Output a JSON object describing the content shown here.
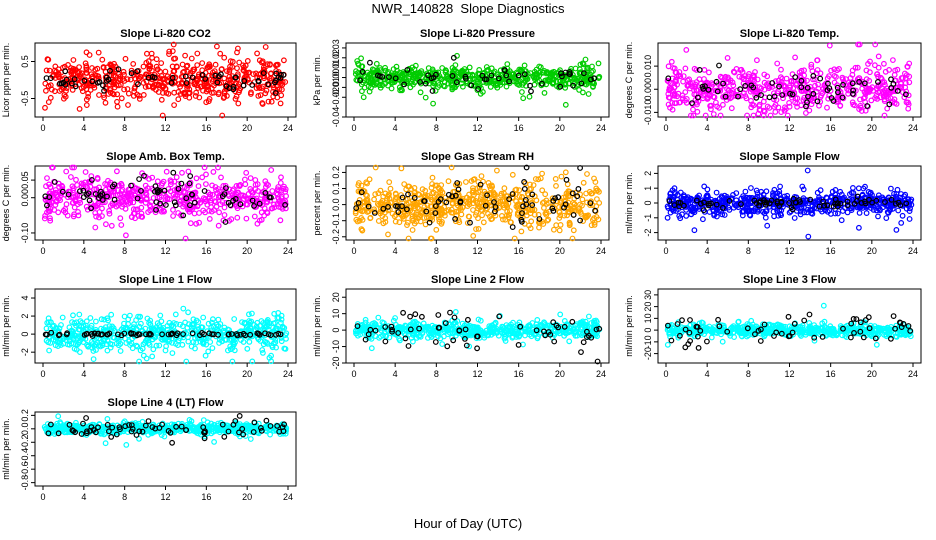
{
  "page": {
    "title": "NWR_140828  Slope Diagnostics",
    "xlabel": "Hour of Day (UTC)"
  },
  "chart_data": [
    {
      "type": "scatter",
      "title": "Slope Li-820 CO2",
      "ylabel": "Licor ppm per min.",
      "xlim": [
        0,
        24
      ],
      "ylim": [
        -1.0,
        1.0
      ],
      "yticks": [
        -0.5,
        0.5
      ],
      "yticklabels": [
        "-0.5",
        "0.5"
      ],
      "xticks": [
        0,
        4,
        8,
        12,
        16,
        20,
        24
      ],
      "series": [
        {
          "color": "#ff0000",
          "spread": 0.28,
          "n": 560
        },
        {
          "color": "#000000",
          "spread": 0.12,
          "n": 60
        }
      ]
    },
    {
      "type": "scatter",
      "title": "Slope Li-820 Pressure",
      "ylabel": "kPa per min.",
      "xlim": [
        0,
        24
      ],
      "ylim": [
        -0.04,
        0.035
      ],
      "yticks": [
        -0.04,
        -0.02,
        -0.01,
        0.0,
        0.01,
        0.02,
        0.03
      ],
      "yticklabels": [
        "-0.04",
        "-0.02",
        "-0.01",
        "0.00",
        "0.01",
        "0.02",
        "0.03"
      ],
      "xticks": [
        0,
        4,
        8,
        12,
        16,
        20,
        24
      ],
      "series": [
        {
          "color": "#00cc00",
          "spread": 0.006,
          "n": 560
        },
        {
          "color": "#000000",
          "spread": 0.006,
          "n": 50
        }
      ]
    },
    {
      "type": "scatter",
      "title": "Slope Li-820 Temp.",
      "ylabel": "degrees C per min.",
      "xlim": [
        0,
        24
      ],
      "ylim": [
        -0.012,
        0.02
      ],
      "yticks": [
        -0.01,
        0.0,
        0.01
      ],
      "yticklabels": [
        "-0.010",
        "0.000",
        "0.010"
      ],
      "xticks": [
        0,
        4,
        8,
        12,
        16,
        20,
        24
      ],
      "series": [
        {
          "color": "#ff00ff",
          "spread": 0.005,
          "n": 560
        },
        {
          "color": "#000000",
          "spread": 0.004,
          "n": 60
        }
      ]
    },
    {
      "type": "scatter",
      "title": "Slope Amb. Box Temp.",
      "ylabel": "degrees C per min.",
      "xlim": [
        0,
        24
      ],
      "ylim": [
        -0.12,
        0.09
      ],
      "yticks": [
        -0.1,
        0.0,
        0.05
      ],
      "yticklabels": [
        "-0.10",
        "0.00",
        "0.05"
      ],
      "xticks": [
        0,
        4,
        8,
        12,
        16,
        20,
        24
      ],
      "series": [
        {
          "color": "#ff00ff",
          "spread": 0.03,
          "n": 560
        },
        {
          "color": "#000000",
          "spread": 0.03,
          "n": 70
        }
      ]
    },
    {
      "type": "scatter",
      "title": "Slope Gas Stream RH",
      "ylabel": "percent per min.",
      "xlim": [
        0,
        24
      ],
      "ylim": [
        -0.22,
        0.24
      ],
      "yticks": [
        -0.2,
        -0.1,
        0.0,
        0.1,
        0.2
      ],
      "yticklabels": [
        "-0.2",
        "-0.1",
        "0.0",
        "0.1",
        "0.2"
      ],
      "xticks": [
        0,
        4,
        8,
        12,
        16,
        20,
        24
      ],
      "series": [
        {
          "color": "#ffa500",
          "spread": 0.07,
          "n": 620
        },
        {
          "color": "#000000",
          "spread": 0.06,
          "n": 70
        }
      ]
    },
    {
      "type": "scatter",
      "title": "Slope Sample Flow",
      "ylabel": "ml/min per min.",
      "xlim": [
        0,
        24
      ],
      "ylim": [
        -2.5,
        2.5
      ],
      "yticks": [
        -2,
        -1,
        0,
        1,
        2
      ],
      "yticklabels": [
        "-2",
        "-1",
        "0",
        "1",
        "2"
      ],
      "xticks": [
        0,
        4,
        8,
        12,
        16,
        20,
        24
      ],
      "series": [
        {
          "color": "#0000ff",
          "spread": 0.4,
          "n": 600
        },
        {
          "color": "#000000",
          "spread": 0.15,
          "n": 70
        }
      ]
    },
    {
      "type": "scatter",
      "title": "Slope Line 1 Flow",
      "ylabel": "ml/min per min.",
      "xlim": [
        0,
        24
      ],
      "ylim": [
        -3.2,
        5.0
      ],
      "yticks": [
        -2,
        0,
        2,
        4
      ],
      "yticklabels": [
        "-2",
        "0",
        "2",
        "4"
      ],
      "xticks": [
        0,
        4,
        8,
        12,
        16,
        20,
        24
      ],
      "series": [
        {
          "color": "#00ffff",
          "spread": 0.9,
          "n": 560
        },
        {
          "color": "#000000",
          "spread": 0.08,
          "n": 70
        }
      ]
    },
    {
      "type": "scatter",
      "title": "Slope Line 2 Flow",
      "ylabel": "ml/min per min.",
      "xlim": [
        0,
        24
      ],
      "ylim": [
        -20,
        25
      ],
      "yticks": [
        -20,
        -10,
        0,
        10,
        20
      ],
      "yticklabels": [
        "-20",
        "-10",
        "0",
        "10",
        "20"
      ],
      "xticks": [
        0,
        4,
        8,
        12,
        16,
        20,
        24
      ],
      "series": [
        {
          "color": "#00ffff",
          "spread": 2.5,
          "n": 560
        },
        {
          "color": "#000000",
          "spread": 6,
          "n": 60
        }
      ]
    },
    {
      "type": "scatter",
      "title": "Slope Line 3 Flow",
      "ylabel": "ml/min per min.",
      "xlim": [
        0,
        24
      ],
      "ylim": [
        -28,
        35
      ],
      "yticks": [
        -20,
        -10,
        0,
        10,
        20,
        30
      ],
      "yticklabels": [
        "-20",
        "-10",
        "0",
        "10",
        "20",
        "30"
      ],
      "xticks": [
        0,
        4,
        8,
        12,
        16,
        20,
        24
      ],
      "series": [
        {
          "color": "#00ffff",
          "spread": 2.5,
          "n": 560
        },
        {
          "color": "#000000",
          "spread": 7,
          "n": 60
        }
      ]
    },
    {
      "type": "scatter",
      "title": "Slope Line 4 (LT) Flow",
      "ylabel": "ml/min per min.",
      "xlim": [
        0,
        24
      ],
      "ylim": [
        -0.85,
        0.25
      ],
      "yticks": [
        -0.8,
        -0.6,
        -0.4,
        -0.2,
        0.0,
        0.2
      ],
      "yticklabels": [
        "-0.8",
        "-0.6",
        "-0.4",
        "-0.2",
        "0.0",
        "0.2"
      ],
      "xticks": [
        0,
        4,
        8,
        12,
        16,
        20,
        24
      ],
      "series": [
        {
          "color": "#00ffff",
          "spread": 0.04,
          "n": 560
        },
        {
          "color": "#000000",
          "spread": 0.06,
          "n": 70
        }
      ]
    }
  ]
}
